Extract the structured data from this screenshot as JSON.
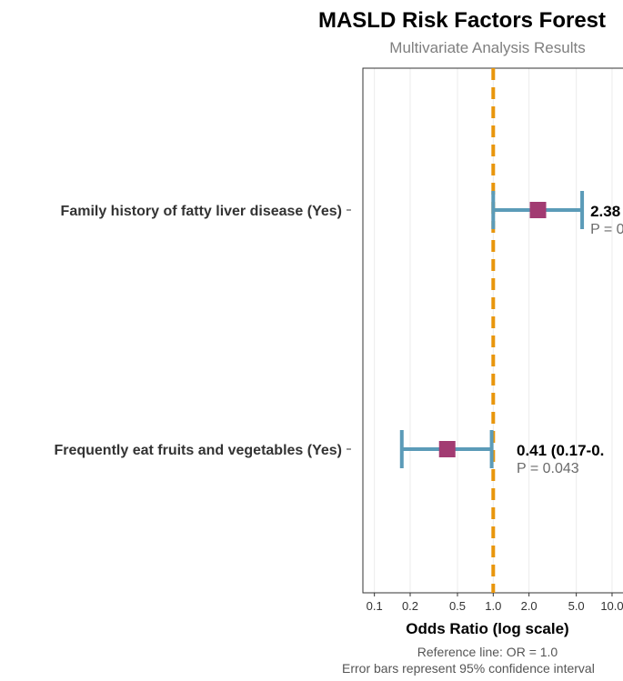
{
  "chart_data": {
    "type": "forest",
    "title": "MASLD Risk Factors Forest",
    "subtitle": "Multivariate Analysis Results",
    "xlabel": "Odds Ratio (log scale)",
    "x_scale": "log",
    "xlim": [
      0.08,
      13.5
    ],
    "x_ticks": [
      0.1,
      0.2,
      0.5,
      1.0,
      2.0,
      5.0,
      10.0
    ],
    "x_tick_labels": [
      "0.1",
      "0.2",
      "0.5",
      "1.0",
      "2.0",
      "5.0",
      "10.0"
    ],
    "reference_line": 1.0,
    "grid": "vertical only",
    "rows": [
      {
        "label": "Family history of fatty liver disease (Yes)",
        "or": 2.38,
        "ci_low": 1.0,
        "ci_high": 5.6,
        "estimate_text": "2.38",
        "p_text": "P = 0"
      },
      {
        "label": "Frequently eat fruits and vegetables (Yes)",
        "or": 0.41,
        "ci_low": 0.17,
        "ci_high": 0.97,
        "estimate_text": "0.41 (0.17-0.",
        "p_text": "P = 0.043"
      }
    ],
    "caption": [
      "Reference line: OR = 1.0",
      "Error bars represent 95% confidence interval"
    ],
    "colors": {
      "error_bar": "#5b9bb8",
      "point": "#a23b72",
      "reference": "#e8960c",
      "grid": "#ebebeb",
      "panel_border": "#333333"
    }
  }
}
